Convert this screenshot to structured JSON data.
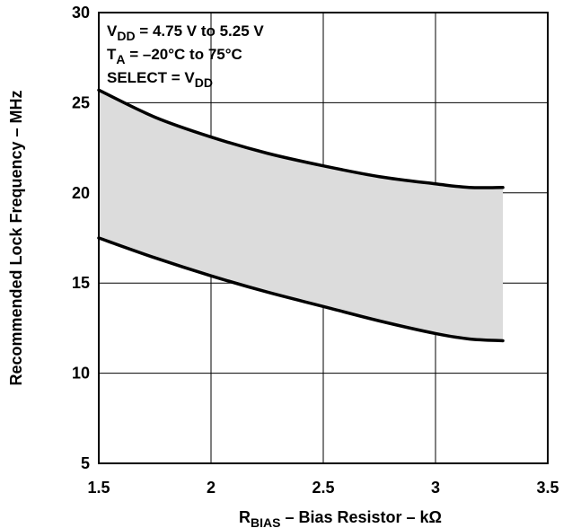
{
  "chart_data": {
    "type": "area",
    "x_label_main": "R",
    "x_label_sub": "BIAS",
    "x_label_rest": " – Bias Resistor – kΩ",
    "y_label": "Recommended Lock Frequency – MHz",
    "xlim": [
      1.5,
      3.5
    ],
    "ylim": [
      5,
      30
    ],
    "x_ticks": [
      "1.5",
      "2",
      "2.5",
      "3",
      "3.5"
    ],
    "x_tick_values": [
      1.5,
      2,
      2.5,
      3,
      3.5
    ],
    "y_ticks": [
      "5",
      "10",
      "15",
      "20",
      "25",
      "30"
    ],
    "y_tick_values": [
      5,
      10,
      15,
      20,
      25,
      30
    ],
    "grid": true,
    "fill_color": "#dcdcdc",
    "line_color": "#000000",
    "series": [
      {
        "role": "upper",
        "x": [
          1.5,
          1.75,
          2.0,
          2.25,
          2.5,
          2.75,
          3.0,
          3.15,
          3.3
        ],
        "values": [
          25.7,
          24.2,
          23.1,
          22.2,
          21.5,
          20.9,
          20.5,
          20.3,
          20.3
        ]
      },
      {
        "role": "lower",
        "x": [
          1.5,
          1.75,
          2.0,
          2.25,
          2.5,
          2.75,
          3.0,
          3.15,
          3.3
        ],
        "values": [
          17.5,
          16.4,
          15.4,
          14.5,
          13.7,
          12.9,
          12.2,
          11.9,
          11.8
        ]
      }
    ],
    "annotations": [
      {
        "main": "V",
        "sub": "DD",
        "rest": " = 4.75 V to 5.25 V"
      },
      {
        "main": "T",
        "sub": "A",
        "rest": " = –20°C to 75°C"
      },
      {
        "main": "SELECT = V",
        "sub": "DD",
        "rest": ""
      }
    ]
  }
}
